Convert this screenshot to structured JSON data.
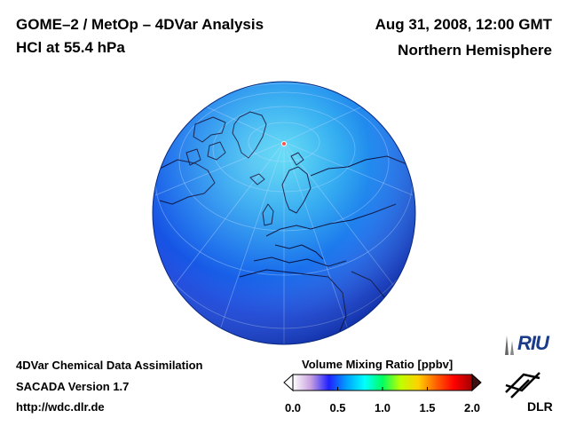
{
  "header": {
    "title_line1": "GOME–2 / MetOp – 4DVar Analysis",
    "title_line2": "HCl at 55.4 hPa",
    "datetime": "Aug 31, 2008, 12:00 GMT",
    "region": "Northern Hemisphere"
  },
  "footer": {
    "line1": "4DVar Chemical Data Assimilation",
    "line2": "SACADA Version 1.7",
    "line3": "http://wdc.dlr.de"
  },
  "colorbar": {
    "label": "Volume Mixing Ratio [ppbv]",
    "min": 0.0,
    "max": 2.0,
    "ticks": [
      "0.0",
      "0.5",
      "1.0",
      "1.5",
      "2.0"
    ],
    "tick_values": [
      0.0,
      0.5,
      1.0,
      1.5,
      2.0
    ],
    "colors": [
      "#ffffff",
      "#c8a0e0",
      "#2020ff",
      "#00a0ff",
      "#00ffff",
      "#00ff60",
      "#c0ff00",
      "#ffd000",
      "#ff6000",
      "#ff0000",
      "#a00000"
    ]
  },
  "globe": {
    "projection": "orthographic",
    "field_color_low": "#1040e8",
    "field_color_high": "#40c8f0"
  },
  "logos": {
    "riu_text": "RIU",
    "dlr_text": "DLR"
  }
}
